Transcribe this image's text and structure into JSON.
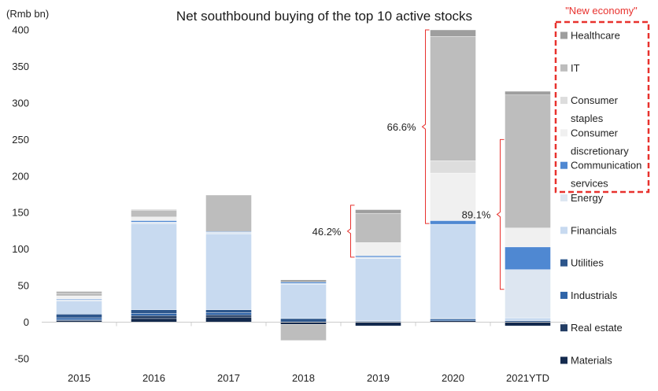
{
  "chart_data": {
    "type": "bar",
    "stacked": true,
    "title": "Net southbound buying of the top 10 active stocks",
    "ylabel": "(Rmb bn)",
    "ylim": [
      -50,
      400
    ],
    "yticks": [
      -50,
      0,
      50,
      100,
      150,
      200,
      250,
      300,
      350,
      400
    ],
    "categories": [
      "2015",
      "2016",
      "2017",
      "2018",
      "2019",
      "2020",
      "2021YTD"
    ],
    "series": [
      {
        "name": "Materials",
        "color": "#142a4e",
        "values": [
          2,
          5,
          7,
          -3,
          -5,
          2,
          -5
        ]
      },
      {
        "name": "Real estate",
        "color": "#223c63",
        "values": [
          1,
          4,
          3,
          0,
          0,
          0,
          0
        ]
      },
      {
        "name": "Industrials",
        "color": "#2f64a8",
        "values": [
          3,
          3,
          3,
          0,
          1,
          2,
          0
        ]
      },
      {
        "name": "Utilities",
        "color": "#2d568c",
        "values": [
          5,
          5,
          4,
          5,
          1,
          1,
          2
        ]
      },
      {
        "name": "Financials",
        "color": "#c8daf0",
        "values": [
          18,
          118,
          104,
          47,
          85,
          129,
          4
        ]
      },
      {
        "name": "Energy",
        "color": "#dde6f1",
        "values": [
          2,
          2,
          2,
          1,
          2,
          0,
          66
        ]
      },
      {
        "name": "Communication services",
        "color": "#4f88d2",
        "values": [
          1,
          2,
          1,
          2,
          2,
          5,
          31
        ]
      },
      {
        "name": "Consumer discretionary",
        "color": "#f0f0f0",
        "values": [
          4,
          5,
          0,
          0,
          18,
          65,
          26
        ]
      },
      {
        "name": "Consumer staples",
        "color": "#dddddd",
        "values": [
          0,
          0,
          0,
          0,
          0,
          17,
          0
        ]
      },
      {
        "name": "IT",
        "color": "#bdbdbd",
        "values": [
          4,
          9,
          50,
          -22,
          40,
          170,
          182
        ]
      },
      {
        "name": "Healthcare",
        "color": "#9e9e9e",
        "values": [
          2,
          1,
          0,
          3,
          5,
          9,
          5
        ]
      }
    ],
    "legend": {
      "position": "right",
      "order": [
        "Healthcare",
        "IT",
        "Consumer staples",
        "Consumer discretionary",
        "Communication services",
        "Energy",
        "Financials",
        "Utilities",
        "Industrials",
        "Real estate",
        "Materials"
      ],
      "labels": {
        "Healthcare": [
          "Healthcare"
        ],
        "IT": [
          "IT"
        ],
        "Consumer staples": [
          "Consumer",
          "staples"
        ],
        "Consumer discretionary": [
          "Consumer",
          "discretionary"
        ],
        "Communication services": [
          "Communication",
          "services"
        ],
        "Energy": [
          "Energy"
        ],
        "Financials": [
          "Financials"
        ],
        "Utilities": [
          "Utilities"
        ],
        "Industrials": [
          "Industrials"
        ],
        "Real estate": [
          "Real estate"
        ],
        "Materials": [
          "Materials"
        ]
      },
      "new_economy_label": "\"New economy\"",
      "new_economy_color": "#e8322e"
    },
    "annotations": [
      {
        "text": "46.2%",
        "category": "2019",
        "range": [
          89,
          160
        ]
      },
      {
        "text": "66.6%",
        "category": "2020",
        "range": [
          135,
          400
        ]
      },
      {
        "text": "89.1%",
        "category": "2021YTD",
        "range": [
          45,
          250
        ]
      }
    ],
    "annotation_color": "#e8322e"
  }
}
